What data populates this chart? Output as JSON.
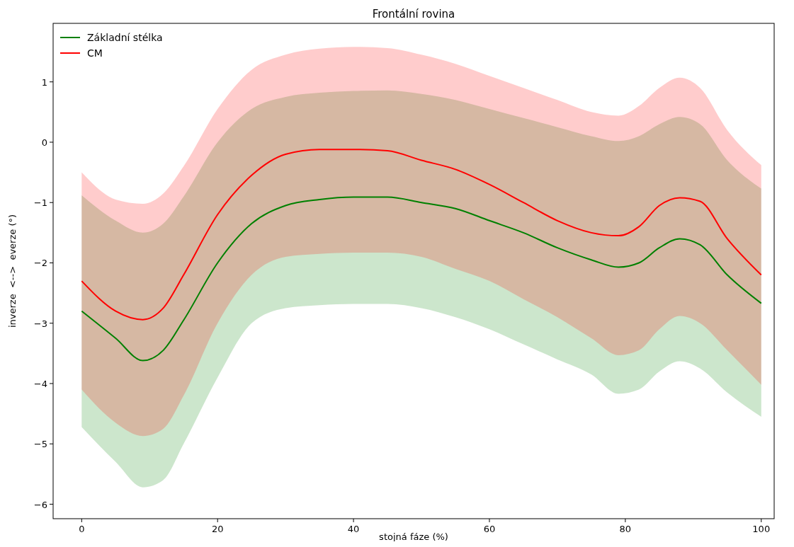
{
  "chart_data": {
    "type": "line",
    "title": "Frontální rovina",
    "xlabel": "stojná fáze (%)",
    "ylabel": "inverze  <-->  everze (°)",
    "x": [
      0,
      5,
      9,
      12,
      15,
      20,
      25,
      30,
      35,
      40,
      45,
      50,
      55,
      60,
      65,
      70,
      75,
      79,
      82,
      85,
      88,
      91,
      95,
      100
    ],
    "series": [
      {
        "name": "Základní stélka",
        "color": "#008000",
        "values": [
          -2.8,
          -3.25,
          -3.62,
          -3.45,
          -2.95,
          -2.0,
          -1.35,
          -1.05,
          -0.95,
          -0.91,
          -0.91,
          -1.0,
          -1.1,
          -1.3,
          -1.5,
          -1.75,
          -1.95,
          -2.07,
          -2.0,
          -1.75,
          -1.6,
          -1.7,
          -2.2,
          -2.67
        ],
        "upper": [
          -0.88,
          -1.3,
          -1.5,
          -1.35,
          -0.9,
          0.0,
          0.55,
          0.75,
          0.82,
          0.85,
          0.86,
          0.8,
          0.7,
          0.55,
          0.4,
          0.25,
          0.1,
          0.02,
          0.1,
          0.3,
          0.42,
          0.3,
          -0.3,
          -0.77
        ],
        "lower": [
          -4.72,
          -5.3,
          -5.72,
          -5.6,
          -5.0,
          -3.9,
          -3.0,
          -2.75,
          -2.7,
          -2.68,
          -2.68,
          -2.75,
          -2.9,
          -3.1,
          -3.35,
          -3.6,
          -3.85,
          -4.17,
          -4.1,
          -3.8,
          -3.63,
          -3.75,
          -4.15,
          -4.55
        ]
      },
      {
        "name": "CM",
        "color": "#ff0000",
        "values": [
          -2.3,
          -2.8,
          -2.94,
          -2.75,
          -2.2,
          -1.2,
          -0.55,
          -0.2,
          -0.12,
          -0.12,
          -0.14,
          -0.3,
          -0.45,
          -0.7,
          -1.0,
          -1.3,
          -1.5,
          -1.55,
          -1.4,
          -1.05,
          -0.92,
          -0.98,
          -1.6,
          -2.2
        ],
        "upper": [
          -0.5,
          -0.95,
          -1.02,
          -0.85,
          -0.4,
          0.55,
          1.2,
          1.45,
          1.55,
          1.58,
          1.56,
          1.45,
          1.3,
          1.1,
          0.9,
          0.7,
          0.5,
          0.44,
          0.6,
          0.9,
          1.07,
          0.9,
          0.2,
          -0.38
        ],
        "lower": [
          -4.1,
          -4.65,
          -4.87,
          -4.75,
          -4.2,
          -3.0,
          -2.2,
          -1.9,
          -1.85,
          -1.83,
          -1.83,
          -1.9,
          -2.1,
          -2.3,
          -2.6,
          -2.9,
          -3.25,
          -3.53,
          -3.45,
          -3.1,
          -2.88,
          -3.0,
          -3.45,
          -4.02
        ]
      }
    ],
    "xlim": [
      -4.2,
      101.9
    ],
    "ylim": [
      -6.24,
      1.97
    ],
    "xticks": [
      0,
      20,
      40,
      60,
      80,
      100
    ],
    "yticks": [
      -6,
      -5,
      -4,
      -3,
      -2,
      -1,
      0,
      1
    ],
    "legend": "top left",
    "grid": false,
    "line_style": "solid",
    "marker": "none"
  }
}
